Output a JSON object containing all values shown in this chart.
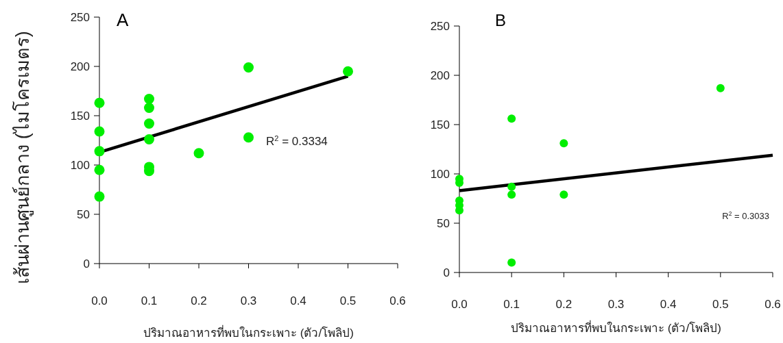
{
  "chart_data": [
    {
      "type": "scatter",
      "ylabel": "เส้นผ่านศูนย์กลาง (ไมโครเมตร)",
      "xlabel": "ปริมาณอาหารที่พบในกระเพาะ (ตัว/โพลิป)",
      "annotations": [
        "A",
        "R$^{2}$ = 0.3334"
      ],
      "xlim": [
        0,
        0.6
      ],
      "ylim": [
        0,
        250
      ],
      "xticks": [
        {
          "value": 0,
          "label": "0.0"
        },
        0.1,
        0.2,
        0.3,
        0.4,
        0.5,
        0.6
      ],
      "yticks": [
        0,
        50,
        100,
        150,
        200,
        250
      ],
      "grid": false,
      "series": [
        {
          "marker": "circle",
          "color": "#00ee00",
          "x": [
            0,
            0,
            0,
            0,
            0,
            0.1,
            0.1,
            0.1,
            0.1,
            0.1,
            0.1,
            0.2,
            0.3,
            0.3,
            0.5
          ],
          "values": [
            163,
            134,
            114,
            95,
            68,
            167,
            158,
            142,
            126,
            98,
            94,
            112,
            199,
            128,
            195
          ]
        },
        {
          "type": "line",
          "color": "#000000",
          "x": [
            0,
            0.5
          ],
          "values": [
            113,
            190
          ]
        }
      ]
    },
    {
      "type": "scatter",
      "xlabel": "ปริมาณอาหารที่พบในกระเพาะ (ตัว/โพลิป)",
      "annotations": [
        "B",
        "R$^{2}$ = 0.3033"
      ],
      "xlim": [
        0,
        0.6
      ],
      "ylim": [
        0,
        250
      ],
      "xticks": [
        {
          "value": 0,
          "label": "0.0"
        },
        0.1,
        0.2,
        0.3,
        0.4,
        0.5,
        0.6
      ],
      "yticks": [
        0,
        50,
        100,
        150,
        200,
        250
      ],
      "grid": false,
      "series": [
        {
          "marker": "circle",
          "color": "#00ee00",
          "x": [
            0,
            0,
            0,
            0,
            0,
            0.1,
            0.1,
            0.1,
            0.1,
            0.2,
            0.2,
            0.5
          ],
          "values": [
            95,
            91,
            73,
            68,
            63,
            156,
            87,
            79,
            10,
            131,
            79,
            187
          ]
        },
        {
          "type": "line",
          "color": "#000000",
          "x": [
            0,
            0.6
          ],
          "values": [
            83,
            119
          ]
        }
      ]
    }
  ]
}
